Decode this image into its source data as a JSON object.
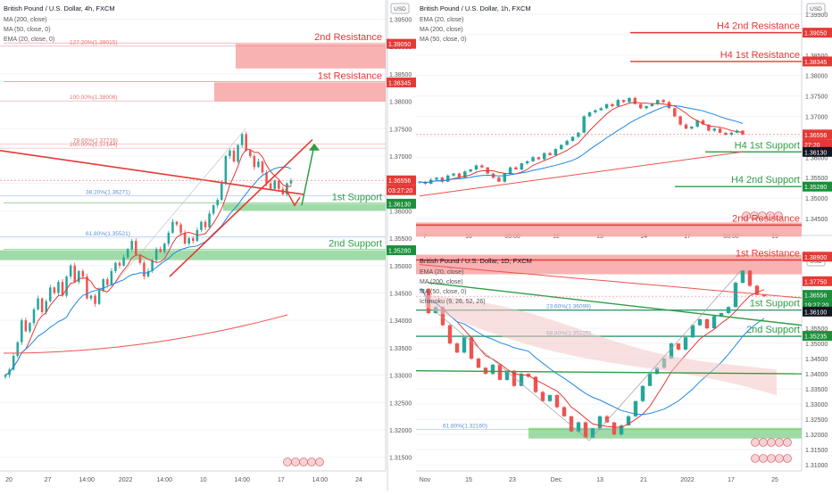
{
  "colors": {
    "candle_up": "#26a69a",
    "candle_down": "#ef5350",
    "ema20": "#e53935",
    "ma200": "#ef5350",
    "ma50": "#1e88e5",
    "resistance_fill": "#f8a5a5",
    "support_fill": "#7fcf8a",
    "resistance_text": "#e53935",
    "support_text": "#2e9e44",
    "badge_red": "#e53935",
    "badge_green": "#1b8f3a",
    "badge_dark": "#131722"
  },
  "chart_data": [
    {
      "type": "candlestick",
      "panel": "4h",
      "title": "British Pound / U.S. Dollar, 4h, FXCM",
      "indicators": [
        "MA (200, close)",
        "MA (50, close, 0)",
        "EMA (20, close, 0)"
      ],
      "x_ticks": [
        "20",
        "27",
        "14:00",
        "2022",
        "14:00",
        "10",
        "14:00",
        "17",
        "14:00",
        "24"
      ],
      "y_ticks": [
        "1.39500",
        "1.39000",
        "1.38500",
        "1.38000",
        "1.37500",
        "1.37000",
        "1.36500",
        "1.36000",
        "1.35500",
        "1.35000",
        "1.34500",
        "1.34000",
        "1.33500",
        "1.33000",
        "1.32500",
        "1.32000",
        "1.31500"
      ],
      "ylim": [
        1.3125,
        1.3985
      ],
      "currency": "USD",
      "price_badges": [
        {
          "value": "1.39050",
          "kind": "red"
        },
        {
          "value": "1.38345",
          "kind": "red"
        },
        {
          "value": "1.36556",
          "kind": "red"
        },
        {
          "value": "03:27:20",
          "kind": "red"
        },
        {
          "value": "1.36130",
          "kind": "green"
        },
        {
          "value": "1.35280",
          "kind": "green"
        }
      ],
      "levels": [
        {
          "label": "2nd Resistance",
          "low": 1.386,
          "high": 1.3905,
          "kind": "resistance"
        },
        {
          "label": "1st Resistance",
          "low": 1.38,
          "high": 1.38345,
          "kind": "resistance"
        },
        {
          "label": "1st Support",
          "low": 1.36,
          "high": 1.3613,
          "kind": "support"
        },
        {
          "label": "2nd Support",
          "low": 1.351,
          "high": 1.3528,
          "kind": "support"
        }
      ],
      "fib_labels": [
        "127.20%(1.39015)",
        "100.00%(1.38008)",
        "78.60%(1.37216)",
        "200.00%(1.37144)",
        "38.20%(1.36271)",
        "61.80%(1.35521)"
      ],
      "fib_values": [
        1.39015,
        1.38008,
        1.37216,
        1.37144,
        1.36271,
        1.35521
      ],
      "close": [
        1.33,
        1.331,
        1.3335,
        1.336,
        1.34,
        1.338,
        1.3395,
        1.342,
        1.344,
        1.3415,
        1.3435,
        1.346,
        1.345,
        1.347,
        1.3445,
        1.348,
        1.35,
        1.347,
        1.349,
        1.348,
        1.344,
        1.3445,
        1.343,
        1.3455,
        1.3475,
        1.3465,
        1.349,
        1.3505,
        1.35,
        1.3515,
        1.353,
        1.3545,
        1.352,
        1.3505,
        1.348,
        1.349,
        1.351,
        1.353,
        1.3525,
        1.354,
        1.356,
        1.358,
        1.3575,
        1.356,
        1.354,
        1.355,
        1.3545,
        1.3565,
        1.358,
        1.357,
        1.3595,
        1.361,
        1.362,
        1.365,
        1.37,
        1.371,
        1.369,
        1.372,
        1.374,
        1.371,
        1.37,
        1.368,
        1.369,
        1.367,
        1.365,
        1.364,
        1.3655,
        1.364,
        1.363,
        1.365,
        1.36556
      ]
    },
    {
      "type": "candlestick",
      "panel": "1h",
      "title": "British Pound / U.S. Dollar, 1h, FXCM",
      "indicators": [
        "EMA (20, close)",
        "MA (200, close)",
        "MA (50, close, 0)"
      ],
      "x_ticks": [
        "7",
        "10",
        "03:00",
        "12",
        "13",
        "14",
        "17",
        "03:00",
        "19"
      ],
      "y_ticks": [
        "1.39500",
        "1.39000",
        "1.38500",
        "1.38000",
        "1.37500",
        "1.37000",
        "1.36500",
        "1.36000",
        "1.35500",
        "1.35000",
        "1.34500"
      ],
      "ylim": [
        1.3428,
        1.3985
      ],
      "currency": "USD",
      "price_badges": [
        {
          "value": "1.39050",
          "kind": "red"
        },
        {
          "value": "1.38345",
          "kind": "red"
        },
        {
          "value": "1.36556",
          "kind": "red"
        },
        {
          "value": "27:20",
          "kind": "red"
        },
        {
          "value": "1.36130",
          "kind": "dark"
        },
        {
          "value": "1.35280",
          "kind": "green"
        }
      ],
      "levels": [
        {
          "label": "H4 2nd Resistance",
          "value": 1.3905,
          "kind": "resistance"
        },
        {
          "label": "H4 1st Resistance",
          "value": 1.38345,
          "kind": "resistance"
        },
        {
          "label": "H4 1st Support",
          "value": 1.3613,
          "kind": "support"
        },
        {
          "label": "H4 2nd Support",
          "value": 1.3528,
          "kind": "support"
        }
      ],
      "close": [
        1.354,
        1.3535,
        1.3545,
        1.355,
        1.354,
        1.3555,
        1.356,
        1.355,
        1.3565,
        1.357,
        1.358,
        1.3575,
        1.356,
        1.355,
        1.354,
        1.356,
        1.3575,
        1.357,
        1.3585,
        1.359,
        1.36,
        1.3595,
        1.361,
        1.3605,
        1.362,
        1.363,
        1.364,
        1.365,
        1.366,
        1.37,
        1.371,
        1.3715,
        1.372,
        1.373,
        1.3725,
        1.374,
        1.3735,
        1.3745,
        1.373,
        1.372,
        1.3725,
        1.373,
        1.374,
        1.3735,
        1.372,
        1.37,
        1.368,
        1.367,
        1.3675,
        1.369,
        1.368,
        1.3665,
        1.367,
        1.366,
        1.3655,
        1.366,
        1.3665,
        1.36556
      ]
    },
    {
      "type": "candlestick",
      "panel": "1D",
      "title": "British Pound / U.S. Dollar, 1D, FXCM",
      "indicators": [
        "EMA (20, close)",
        "MA (200, close)",
        "MA (50, close, 0)",
        "Ichimoku (9, 26, 52, 26)"
      ],
      "x_ticks": [
        "Nov",
        "15",
        "23",
        "Dec",
        "13",
        "21",
        "2022",
        "17",
        "25"
      ],
      "y_ticks": [
        "1.37000",
        "1.36500",
        "1.36000",
        "1.35500",
        "1.35000",
        "1.34500",
        "1.34000",
        "1.33500",
        "1.33000",
        "1.32500",
        "1.32000",
        "1.31500",
        "1.31000"
      ],
      "ylim": [
        1.308,
        1.38
      ],
      "currency": "USD",
      "price_badges": [
        {
          "value": "1.38900",
          "kind": "red"
        },
        {
          "value": "1.37750",
          "kind": "red"
        },
        {
          "value": "1.36556",
          "kind": "green"
        },
        {
          "value": "19:27:20",
          "kind": "green"
        },
        {
          "value": "1.36100",
          "kind": "dark"
        },
        {
          "value": "1.35235",
          "kind": "green"
        }
      ],
      "levels": [
        {
          "label": "2nd Resistance",
          "value": 1.389,
          "kind": "resistance"
        },
        {
          "label": "1st Resistance",
          "value": 1.3775,
          "kind": "resistance"
        },
        {
          "label": "1st Support",
          "value": 1.361,
          "kind": "support"
        },
        {
          "label": "2nd Support",
          "value": 1.35235,
          "kind": "support"
        }
      ],
      "fib_labels": [
        "23.60%(1.36099)",
        "68.80%(1.35225)",
        "61.80%(1.32160)"
      ],
      "fib_values": [
        1.36099,
        1.35225,
        1.3216
      ],
      "close": [
        1.368,
        1.36,
        1.362,
        1.356,
        1.35,
        1.347,
        1.352,
        1.345,
        1.342,
        1.34,
        1.343,
        1.338,
        1.341,
        1.336,
        1.34,
        1.339,
        1.334,
        1.331,
        1.333,
        1.329,
        1.326,
        1.321,
        1.324,
        1.319,
        1.322,
        1.326,
        1.324,
        1.32,
        1.323,
        1.326,
        1.331,
        1.336,
        1.34,
        1.342,
        1.345,
        1.35,
        1.348,
        1.352,
        1.356,
        1.358,
        1.355,
        1.359,
        1.36,
        1.362,
        1.37,
        1.374,
        1.369,
        1.366,
        1.36556
      ]
    }
  ]
}
